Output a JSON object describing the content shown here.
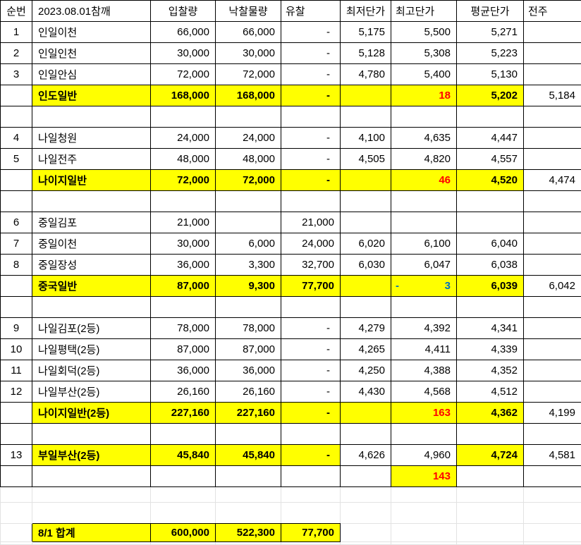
{
  "colors": {
    "highlight_yellow": "#FFFF00",
    "delta_red": "#FF0000",
    "delta_blue": "#0070C0",
    "grid_dark": "#000000",
    "grid_light": "#E2E2E2",
    "text": "#000000"
  },
  "table": {
    "column_keys": [
      "no",
      "name",
      "bid",
      "won",
      "fail",
      "min",
      "max",
      "avg",
      "prev"
    ],
    "rows": [
      {
        "kind": "header",
        "no": "순번",
        "name": "2023.08.01참깨",
        "bid": "입찰량",
        "won": "낙찰물량",
        "fail": "유찰",
        "min": "최저단가",
        "max": "최고단가",
        "avg": "평균단가",
        "prev": "전주"
      },
      {
        "kind": "data",
        "no": "1",
        "name": "인일이천",
        "bid": "66,000",
        "won": "66,000",
        "fail": "-",
        "min": "5,175",
        "max": "5,500",
        "avg": "5,271",
        "prev": ""
      },
      {
        "kind": "data",
        "no": "2",
        "name": "인일인천",
        "bid": "30,000",
        "won": "30,000",
        "fail": "-",
        "min": "5,128",
        "max": "5,308",
        "avg": "5,223",
        "prev": ""
      },
      {
        "kind": "data",
        "no": "3",
        "name": "인일안심",
        "bid": "72,000",
        "won": "72,000",
        "fail": "-",
        "min": "4,780",
        "max": "5,400",
        "avg": "5,130",
        "prev": ""
      },
      {
        "kind": "subtotal",
        "no": "",
        "name": "인도일반",
        "bid": "168,000",
        "won": "168,000",
        "fail": "-",
        "min": "",
        "max": "18",
        "max_color": "red",
        "avg": "5,202",
        "prev": "5,184"
      },
      {
        "kind": "blank",
        "no": "",
        "name": "",
        "bid": "",
        "won": "",
        "fail": "",
        "min": "",
        "max": "",
        "avg": "",
        "prev": ""
      },
      {
        "kind": "data",
        "no": "4",
        "name": "나일청원",
        "bid": "24,000",
        "won": "24,000",
        "fail": "-",
        "min": "4,100",
        "max": "4,635",
        "avg": "4,447",
        "prev": ""
      },
      {
        "kind": "data",
        "no": "5",
        "name": "나일전주",
        "bid": "48,000",
        "won": "48,000",
        "fail": "-",
        "min": "4,505",
        "max": "4,820",
        "avg": "4,557",
        "prev": ""
      },
      {
        "kind": "subtotal",
        "no": "",
        "name": "나이지일반",
        "bid": "72,000",
        "won": "72,000",
        "fail": "-",
        "min": "",
        "max": "46",
        "max_color": "red",
        "avg": "4,520",
        "prev": "4,474"
      },
      {
        "kind": "blank",
        "no": "",
        "name": "",
        "bid": "",
        "won": "",
        "fail": "",
        "min": "",
        "max": "",
        "avg": "",
        "prev": ""
      },
      {
        "kind": "data",
        "no": "6",
        "name": "중일김포",
        "bid": "21,000",
        "won": "",
        "fail": "21,000",
        "min": "",
        "max": "",
        "avg": "",
        "prev": ""
      },
      {
        "kind": "data",
        "no": "7",
        "name": "중일이천",
        "bid": "30,000",
        "won": "6,000",
        "fail": "24,000",
        "min": "6,020",
        "max": "6,100",
        "avg": "6,040",
        "prev": ""
      },
      {
        "kind": "data",
        "no": "8",
        "name": "중일장성",
        "bid": "36,000",
        "won": "3,300",
        "fail": "32,700",
        "min": "6,030",
        "max": "6,047",
        "avg": "6,038",
        "prev": ""
      },
      {
        "kind": "subtotal",
        "no": "",
        "name": "중국일반",
        "bid": "87,000",
        "won": "9,300",
        "fail": "77,700",
        "min": "",
        "max": "3",
        "max_color": "blue",
        "max_prefix": "-",
        "avg": "6,039",
        "prev": "6,042"
      },
      {
        "kind": "blank",
        "no": "",
        "name": "",
        "bid": "",
        "won": "",
        "fail": "",
        "min": "",
        "max": "",
        "avg": "",
        "prev": ""
      },
      {
        "kind": "data",
        "no": "9",
        "name": "나일김포(2등)",
        "bid": "78,000",
        "won": "78,000",
        "fail": "-",
        "min": "4,279",
        "max": "4,392",
        "avg": "4,341",
        "prev": ""
      },
      {
        "kind": "data",
        "no": "10",
        "name": "나일평택(2등)",
        "bid": "87,000",
        "won": "87,000",
        "fail": "-",
        "min": "4,265",
        "max": "4,411",
        "avg": "4,339",
        "prev": ""
      },
      {
        "kind": "data",
        "no": "11",
        "name": "나일회덕(2등)",
        "bid": "36,000",
        "won": "36,000",
        "fail": "-",
        "min": "4,250",
        "max": "4,388",
        "avg": "4,352",
        "prev": ""
      },
      {
        "kind": "data",
        "no": "12",
        "name": "나일부산(2등)",
        "bid": "26,160",
        "won": "26,160",
        "fail": "-",
        "min": "4,430",
        "max": "4,568",
        "avg": "4,512",
        "prev": ""
      },
      {
        "kind": "subtotal",
        "no": "",
        "name": "나이지일반(2등)",
        "bid": "227,160",
        "won": "227,160",
        "fail": "-",
        "min": "",
        "max": "163",
        "max_color": "red",
        "avg": "4,362",
        "prev": "4,199"
      },
      {
        "kind": "blank",
        "no": "",
        "name": "",
        "bid": "",
        "won": "",
        "fail": "",
        "min": "",
        "max": "",
        "avg": "",
        "prev": ""
      },
      {
        "kind": "grade13",
        "no": "13",
        "name": "부일부산(2등)",
        "bid": "45,840",
        "won": "45,840",
        "fail": "-",
        "min": "4,626",
        "max": "4,960",
        "avg": "4,724",
        "prev": "4,581"
      },
      {
        "kind": "row143",
        "no": "",
        "name": "",
        "bid": "",
        "won": "",
        "fail": "",
        "min": "",
        "max": "143",
        "max_color": "red",
        "avg": "",
        "prev": ""
      },
      {
        "kind": "light",
        "h": "22",
        "no": "",
        "name": "",
        "bid": "",
        "won": "",
        "fail": "",
        "min": "",
        "max": "",
        "avg": "",
        "prev": ""
      },
      {
        "kind": "pretotal",
        "h": "30",
        "no": "",
        "name": "",
        "bid": "",
        "won": "",
        "fail": "",
        "min": "",
        "max": "",
        "avg": "",
        "prev": ""
      },
      {
        "kind": "total",
        "h": "26",
        "no": "",
        "name": "8/1 합계",
        "bid": "600,000",
        "won": "522,300",
        "fail": "77,700",
        "min": "",
        "max": "",
        "avg": "",
        "prev": ""
      },
      {
        "kind": "stub",
        "h": "4",
        "no": "",
        "name": "",
        "bid": "",
        "won": "",
        "fail": "",
        "min": "",
        "max": "",
        "avg": "",
        "prev": ""
      }
    ]
  }
}
